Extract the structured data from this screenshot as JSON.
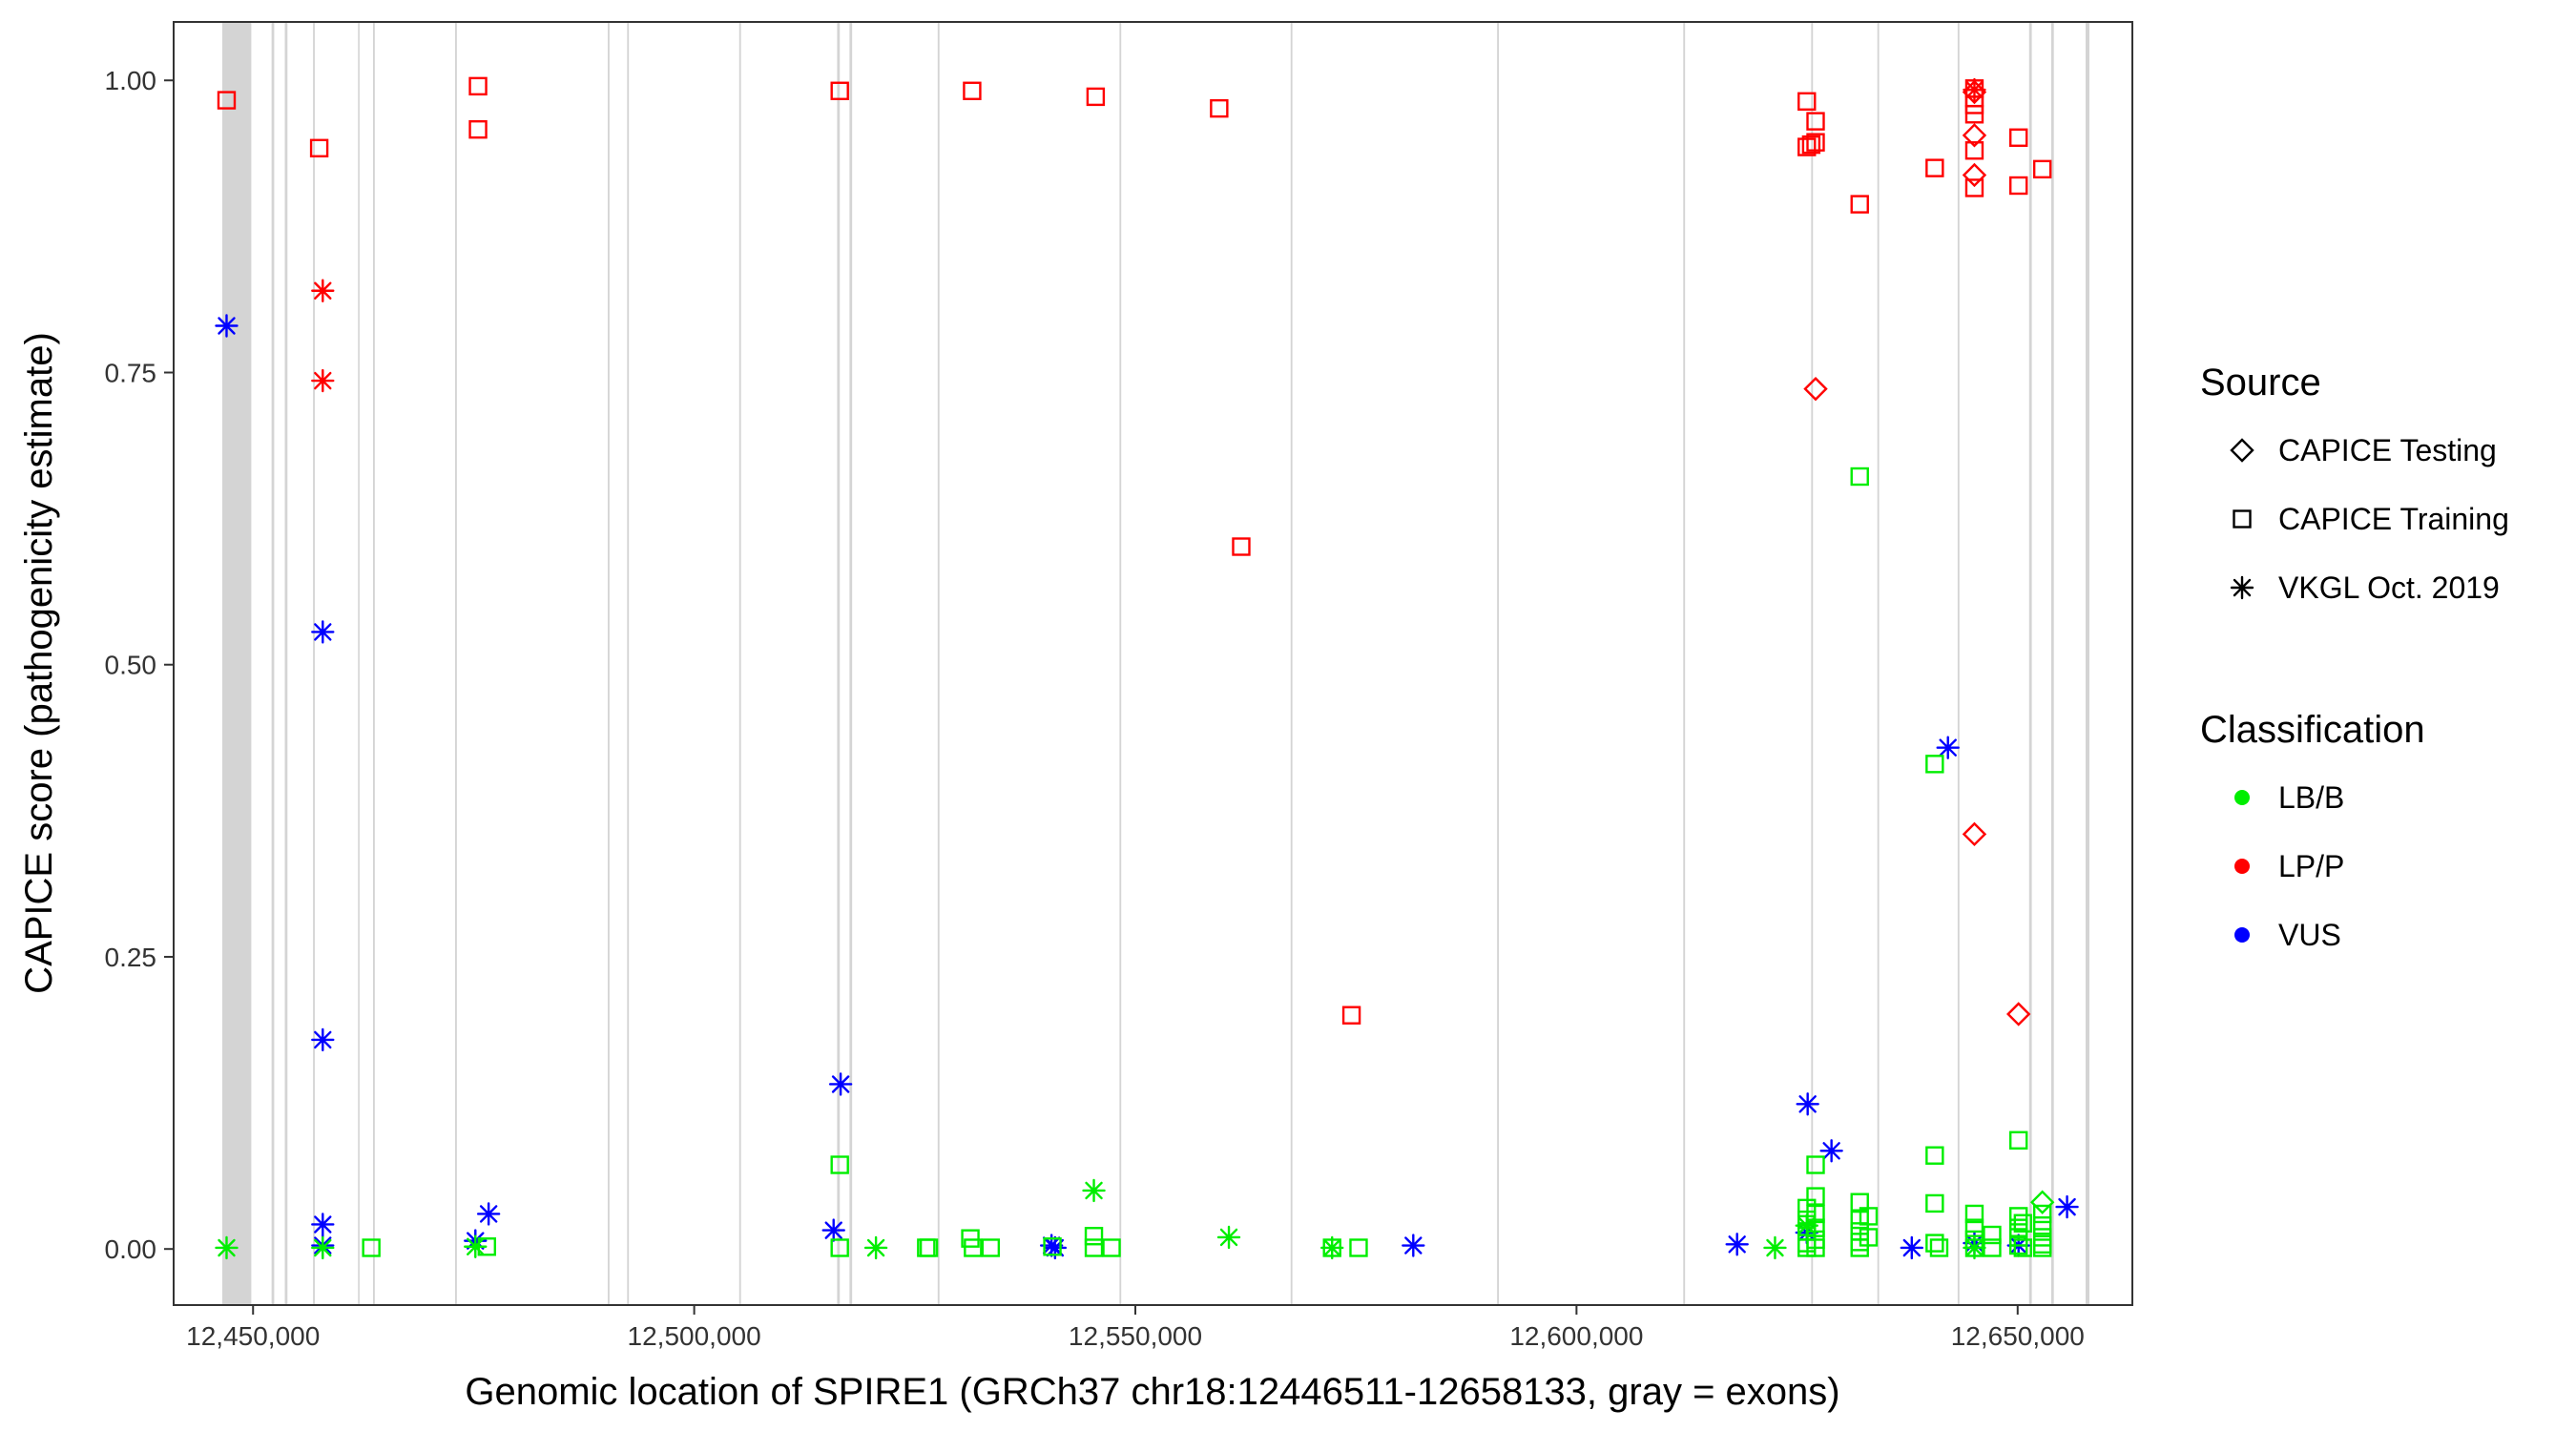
{
  "chart_data": {
    "type": "scatter",
    "title": "",
    "xlabel": "Genomic location of SPIRE1 (GRCh37 chr18:12446511-12658133, gray = exons)",
    "ylabel": "CAPICE score (pathogenicity estimate)",
    "xlim": [
      12441000,
      12663000
    ],
    "ylim": [
      -0.048,
      1.05
    ],
    "x_ticks": [
      12450000,
      12500000,
      12550000,
      12600000,
      12650000
    ],
    "x_tick_labels": [
      "12,450,000",
      "12,500,000",
      "12,550,000",
      "12,600,000",
      "12,650,000"
    ],
    "y_ticks": [
      0,
      0.25,
      0.5,
      0.75,
      1.0
    ],
    "y_tick_labels": [
      "0.00",
      "0.25",
      "0.50",
      "0.75",
      "1.00"
    ],
    "grid": false,
    "exons": [
      [
        12446511,
        12449800
      ],
      [
        12452100,
        12452400
      ],
      [
        12453600,
        12453900
      ],
      [
        12456800,
        12457000
      ],
      [
        12461900,
        12462000
      ],
      [
        12463600,
        12463800
      ],
      [
        12472900,
        12473100
      ],
      [
        12490200,
        12490400
      ],
      [
        12492400,
        12492600
      ],
      [
        12505100,
        12505300
      ],
      [
        12516200,
        12516500
      ],
      [
        12517600,
        12517900
      ],
      [
        12527600,
        12527800
      ],
      [
        12548200,
        12548400
      ],
      [
        12567600,
        12567800
      ],
      [
        12591000,
        12591200
      ],
      [
        12612100,
        12612300
      ],
      [
        12626600,
        12626800
      ],
      [
        12634100,
        12634300
      ],
      [
        12643200,
        12643400
      ],
      [
        12651300,
        12651600
      ],
      [
        12653800,
        12654100
      ],
      [
        12657700,
        12658133
      ]
    ],
    "legend": {
      "position": "right",
      "source_title": "Source",
      "source_items": [
        {
          "label": "CAPICE Testing",
          "shape": "diamond"
        },
        {
          "label": "CAPICE Training",
          "shape": "square"
        },
        {
          "label": "VKGL Oct. 2019",
          "shape": "asterisk"
        }
      ],
      "class_title": "Classification",
      "class_items": [
        {
          "label": "LB/B",
          "color": "#00ee00"
        },
        {
          "label": "LP/P",
          "color": "#ff0000"
        },
        {
          "label": "VUS",
          "color": "#0000ff"
        }
      ]
    },
    "colors": {
      "LB/B": "#00ee00",
      "LP/P": "#ff0000",
      "VUS": "#0000ff"
    },
    "series": [
      {
        "classification": "LP/P",
        "source": "CAPICE Training",
        "points": [
          [
            12447000,
            0.983
          ],
          [
            12457500,
            0.942
          ],
          [
            12475500,
            0.995
          ],
          [
            12475500,
            0.958
          ],
          [
            12516500,
            0.991
          ],
          [
            12531500,
            0.991
          ],
          [
            12545500,
            0.986
          ],
          [
            12559500,
            0.976
          ],
          [
            12562000,
            0.601
          ],
          [
            12574500,
            0.2
          ],
          [
            12626100,
            0.982
          ],
          [
            12626100,
            0.943
          ],
          [
            12626600,
            0.945
          ],
          [
            12627100,
            0.947
          ],
          [
            12627100,
            0.965
          ],
          [
            12632100,
            0.894
          ],
          [
            12640600,
            0.925
          ],
          [
            12645100,
            0.993
          ],
          [
            12645100,
            0.985
          ],
          [
            12645100,
            0.979
          ],
          [
            12645100,
            0.971
          ],
          [
            12645100,
            0.94
          ],
          [
            12645100,
            0.908
          ],
          [
            12650100,
            0.951
          ],
          [
            12650100,
            0.91
          ],
          [
            12652800,
            0.924
          ]
        ]
      },
      {
        "classification": "LP/P",
        "source": "CAPICE Testing",
        "points": [
          [
            12645100,
            0.99
          ],
          [
            12645100,
            0.953
          ],
          [
            12645100,
            0.919
          ],
          [
            12645100,
            0.355
          ],
          [
            12627100,
            0.736
          ],
          [
            12650100,
            0.201
          ]
        ]
      },
      {
        "classification": "LP/P",
        "source": "VKGL Oct. 2019",
        "points": [
          [
            12457900,
            0.82
          ],
          [
            12457900,
            0.743
          ],
          [
            12645100,
            0.992
          ]
        ]
      },
      {
        "classification": "VUS",
        "source": "VKGL Oct. 2019",
        "points": [
          [
            12447000,
            0.79
          ],
          [
            12457900,
            0.528
          ],
          [
            12457900,
            0.179
          ],
          [
            12457900,
            0.021
          ],
          [
            12457900,
            0.003
          ],
          [
            12475200,
            0.007
          ],
          [
            12476700,
            0.03
          ],
          [
            12515800,
            0.016
          ],
          [
            12516600,
            0.141
          ],
          [
            12540500,
            0.003
          ],
          [
            12540900,
            0.001
          ],
          [
            12581500,
            0.003
          ],
          [
            12618200,
            0.004
          ],
          [
            12626200,
            0.124
          ],
          [
            12626100,
            0.014
          ],
          [
            12628900,
            0.084
          ],
          [
            12638000,
            0.001
          ],
          [
            12642100,
            0.429
          ],
          [
            12645100,
            0.005
          ],
          [
            12650100,
            0.003
          ],
          [
            12655600,
            0.036
          ]
        ]
      },
      {
        "classification": "LB/B",
        "source": "VKGL Oct. 2019",
        "points": [
          [
            12447000,
            0.001
          ],
          [
            12457900,
            0.001
          ],
          [
            12475200,
            0.002
          ],
          [
            12520600,
            0.001
          ],
          [
            12545300,
            0.05
          ],
          [
            12560600,
            0.01
          ],
          [
            12572300,
            0.001
          ],
          [
            12622500,
            0.001
          ],
          [
            12626100,
            0.02
          ],
          [
            12645100,
            0.001
          ]
        ]
      },
      {
        "classification": "LB/B",
        "source": "CAPICE Training",
        "points": [
          [
            12463400,
            0.001
          ],
          [
            12476500,
            0.002
          ],
          [
            12516500,
            0.072
          ],
          [
            12516500,
            0.001
          ],
          [
            12526600,
            0.001
          ],
          [
            12526300,
            0.001
          ],
          [
            12531300,
            0.009
          ],
          [
            12531600,
            0.001
          ],
          [
            12533600,
            0.001
          ],
          [
            12540600,
            0.002
          ],
          [
            12545300,
            0.011
          ],
          [
            12545300,
            0.001
          ],
          [
            12547300,
            0.001
          ],
          [
            12572300,
            0.001
          ],
          [
            12575300,
            0.001
          ],
          [
            12626100,
            0.035
          ],
          [
            12626100,
            0.025
          ],
          [
            12626100,
            0.015
          ],
          [
            12626100,
            0.005
          ],
          [
            12626100,
            0.001
          ],
          [
            12627100,
            0.072
          ],
          [
            12627100,
            0.045
          ],
          [
            12627100,
            0.03
          ],
          [
            12627100,
            0.018
          ],
          [
            12627100,
            0.008
          ],
          [
            12627100,
            0.001
          ],
          [
            12632100,
            0.661
          ],
          [
            12632100,
            0.04
          ],
          [
            12632100,
            0.025
          ],
          [
            12632100,
            0.015
          ],
          [
            12632100,
            0.006
          ],
          [
            12632100,
            0.001
          ],
          [
            12633100,
            0.028
          ],
          [
            12633100,
            0.01
          ],
          [
            12640600,
            0.415
          ],
          [
            12640600,
            0.08
          ],
          [
            12640600,
            0.039
          ],
          [
            12640600,
            0.005
          ],
          [
            12641100,
            0.001
          ],
          [
            12645100,
            0.03
          ],
          [
            12645100,
            0.018
          ],
          [
            12645100,
            0.008
          ],
          [
            12645100,
            0.001
          ],
          [
            12647100,
            0.012
          ],
          [
            12647100,
            0.001
          ],
          [
            12650100,
            0.093
          ],
          [
            12650100,
            0.028
          ],
          [
            12650100,
            0.018
          ],
          [
            12650100,
            0.01
          ],
          [
            12650100,
            0.003
          ],
          [
            12650600,
            0.022
          ],
          [
            12650600,
            0.001
          ],
          [
            12652800,
            0.03
          ],
          [
            12652800,
            0.02
          ],
          [
            12652800,
            0.01
          ],
          [
            12652800,
            0.004
          ],
          [
            12652800,
            0.001
          ]
        ]
      },
      {
        "classification": "LB/B",
        "source": "CAPICE Testing",
        "points": [
          [
            12652800,
            0.04
          ]
        ]
      }
    ]
  }
}
